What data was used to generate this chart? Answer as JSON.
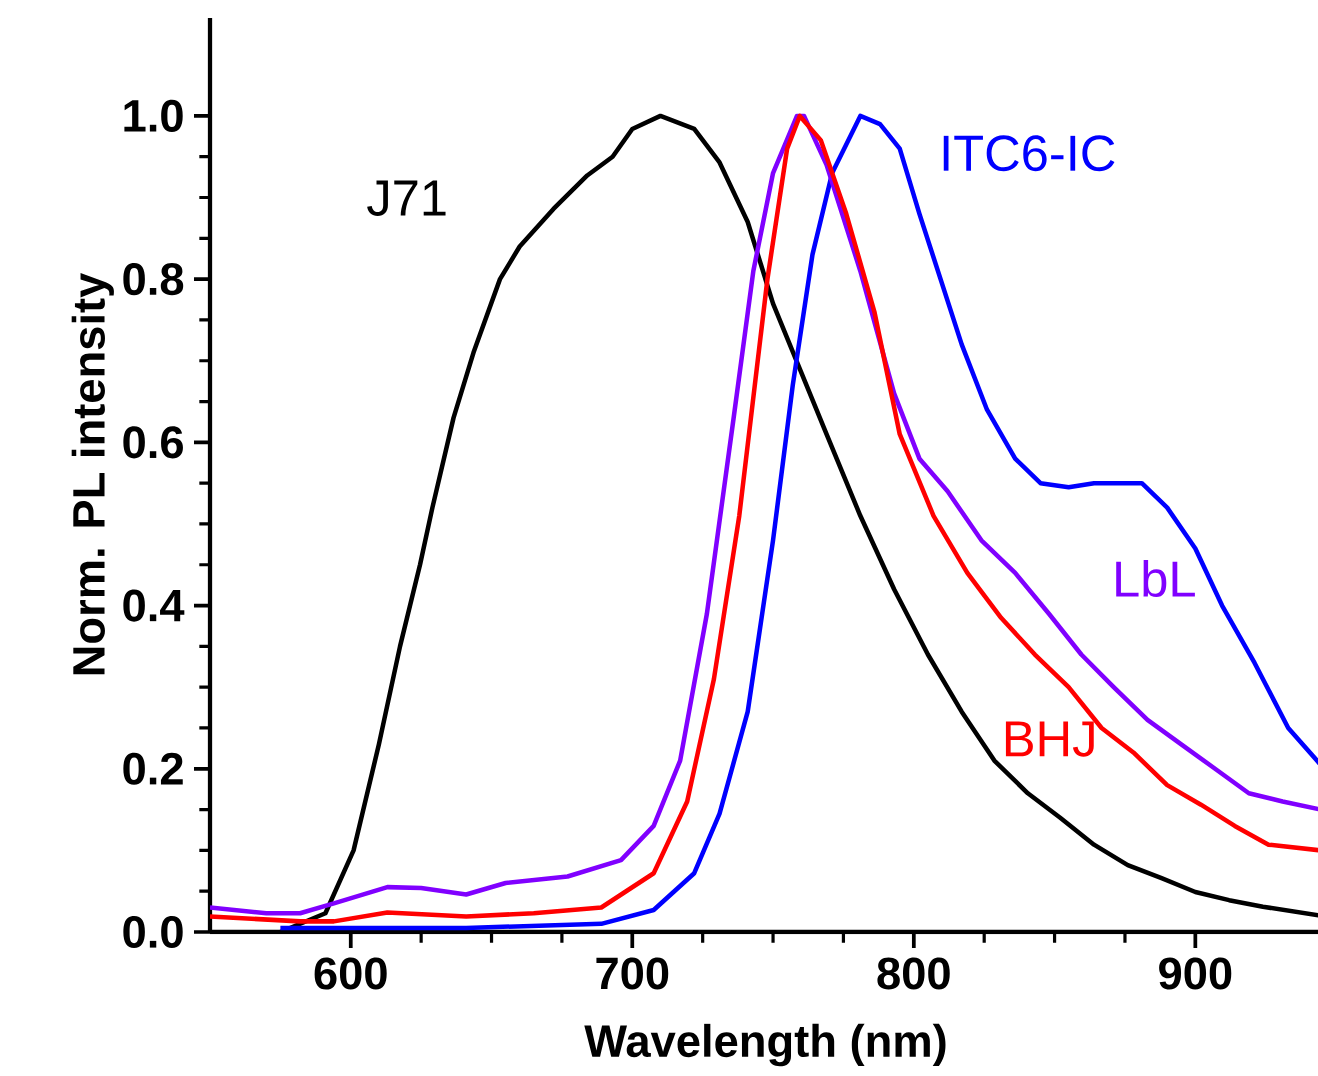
{
  "chart_data": {
    "type": "line",
    "xlabel": "Wavelength (nm)",
    "ylabel": "Norm. PL intensity",
    "xlim": [
      550,
      945
    ],
    "ylim": [
      0,
      1.12
    ],
    "xticks": [
      600,
      700,
      800,
      900
    ],
    "yticks": [
      {
        "value": 0,
        "label": "0.0"
      },
      {
        "value": 0.2,
        "label": "0.2"
      },
      {
        "value": 0.4,
        "label": "0.4"
      },
      {
        "value": 0.6,
        "label": "0.6"
      },
      {
        "value": 0.8,
        "label": "0.8"
      },
      {
        "value": 1.0,
        "label": "1.0"
      }
    ],
    "grid": false,
    "legend": false,
    "marker": "none",
    "line_style": "solid",
    "series": [
      {
        "name": "J71",
        "color": "#000000",
        "x": [
          575,
          591,
          601,
          610,
          617.5,
          624.6,
          629,
          636.5,
          643.6,
          653,
          660,
          672,
          684,
          693,
          700,
          710,
          722,
          731,
          741,
          750,
          759.5,
          769,
          781,
          793,
          805,
          817,
          828.6,
          840.5,
          852,
          864,
          876,
          888,
          900,
          912,
          924,
          944.5
        ],
        "values": [
          0.0,
          0.023,
          0.1,
          0.23,
          0.35,
          0.45,
          0.52,
          0.63,
          0.71,
          0.8,
          0.84,
          0.886,
          0.927,
          0.95,
          0.984,
          1.0,
          0.984,
          0.943,
          0.87,
          0.77,
          0.69,
          0.61,
          0.51,
          0.42,
          0.34,
          0.27,
          0.21,
          0.17,
          0.14,
          0.107,
          0.082,
          0.066,
          0.049,
          0.039,
          0.031,
          0.02
        ]
      },
      {
        "name": "ITC6-IC",
        "color": "#0000ff",
        "x": [
          575,
          641,
          689,
          707.6,
          722,
          731,
          741,
          750,
          757,
          764,
          771,
          781,
          788,
          795,
          802,
          809.5,
          817,
          826,
          836,
          845,
          855,
          864,
          874,
          881,
          890,
          900,
          909.5,
          921,
          933,
          944.5
        ],
        "values": [
          0.005,
          0.005,
          0.01,
          0.027,
          0.072,
          0.145,
          0.27,
          0.48,
          0.67,
          0.83,
          0.93,
          1.0,
          0.99,
          0.96,
          0.88,
          0.8,
          0.72,
          0.64,
          0.58,
          0.55,
          0.545,
          0.55,
          0.55,
          0.55,
          0.52,
          0.47,
          0.4,
          0.33,
          0.25,
          0.205
        ]
      },
      {
        "name": "LbL",
        "color": "#8000ff",
        "x": [
          550,
          570,
          582,
          594,
          613,
          625,
          641,
          655,
          677,
          696,
          707.6,
          717,
          726.5,
          736,
          743,
          750,
          758.5,
          761,
          769,
          781,
          793,
          802,
          812,
          824,
          836,
          848,
          859.5,
          871,
          883,
          895,
          907,
          919,
          931,
          944.5
        ],
        "values": [
          0.03,
          0.023,
          0.023,
          0.035,
          0.055,
          0.054,
          0.046,
          0.06,
          0.068,
          0.088,
          0.13,
          0.21,
          0.39,
          0.63,
          0.81,
          0.93,
          1.0,
          1.0,
          0.94,
          0.81,
          0.66,
          0.58,
          0.54,
          0.48,
          0.44,
          0.39,
          0.34,
          0.3,
          0.26,
          0.23,
          0.2,
          0.17,
          0.16,
          0.15
        ]
      },
      {
        "name": "BHJ",
        "color": "#ff0000",
        "x": [
          550,
          582,
          594,
          613,
          641,
          665,
          689,
          707.6,
          719.5,
          729,
          738,
          748,
          755,
          759.5,
          767,
          776,
          786,
          795,
          807,
          819,
          831,
          843,
          855,
          866.7,
          878,
          890,
          902,
          914,
          926,
          944.5
        ],
        "values": [
          0.019,
          0.013,
          0.013,
          0.024,
          0.019,
          0.023,
          0.03,
          0.072,
          0.16,
          0.31,
          0.51,
          0.8,
          0.96,
          1.0,
          0.97,
          0.88,
          0.76,
          0.61,
          0.51,
          0.44,
          0.385,
          0.34,
          0.3,
          0.25,
          0.22,
          0.18,
          0.156,
          0.13,
          0.107,
          0.1
        ]
      }
    ]
  }
}
